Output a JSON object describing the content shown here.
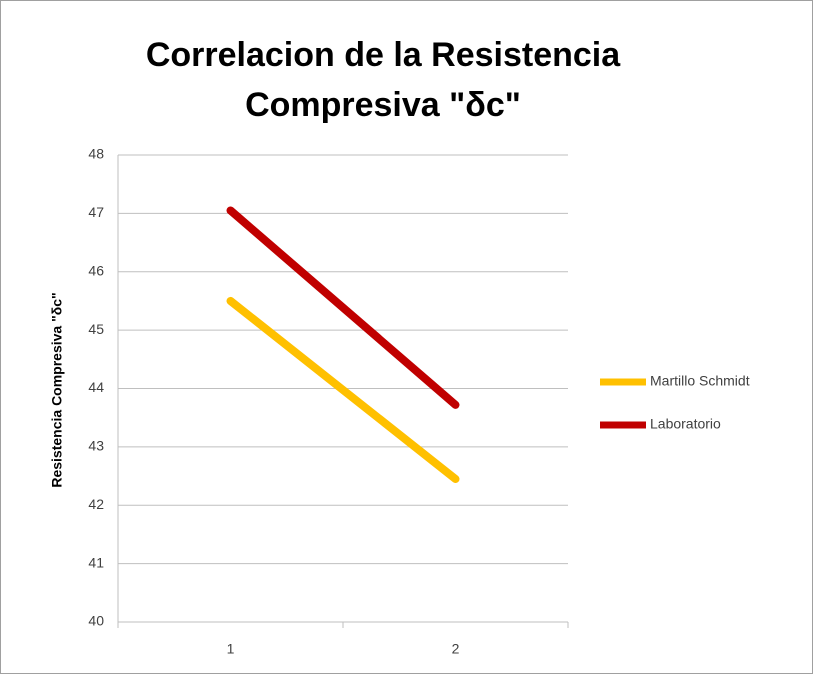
{
  "chart_data": {
    "type": "line",
    "title": [
      "Correlacion de la Resistencia",
      "Compresiva \"δc\""
    ],
    "y_label": "Resistencia Compresiva \"δc\"",
    "categories": [
      "1",
      "2"
    ],
    "series": [
      {
        "name": "Martillo Schmidt",
        "color": "#ffc000",
        "values": [
          45.5,
          42.45
        ]
      },
      {
        "name": "Laboratorio",
        "color": "#c00000",
        "values": [
          47.05,
          43.72
        ]
      }
    ],
    "ylim": [
      40,
      48
    ],
    "yticks": [
      40,
      41,
      42,
      43,
      44,
      45,
      46,
      47,
      48
    ],
    "grid": true,
    "legend": "right"
  }
}
